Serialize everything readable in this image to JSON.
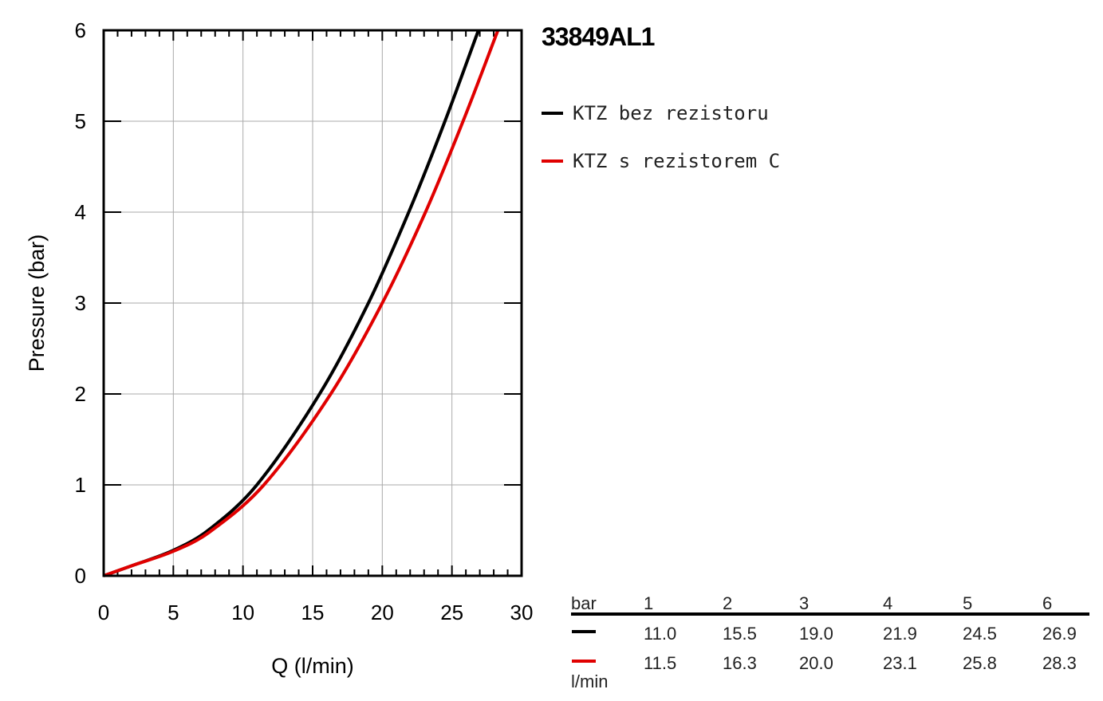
{
  "chart_data": {
    "type": "line",
    "title": "33849AL1",
    "xlabel": "Q (l/min)",
    "ylabel": "Pressure (bar)",
    "xlim": [
      0,
      30
    ],
    "ylim": [
      0,
      6
    ],
    "x_ticks": [
      0,
      5,
      10,
      15,
      20,
      25,
      30
    ],
    "y_ticks": [
      0,
      1,
      2,
      3,
      4,
      5,
      6
    ],
    "grid": true,
    "legend_position": "top-right",
    "series": [
      {
        "name": "KTZ bez rezistoru",
        "color": "#000000",
        "x": [
          0,
          2,
          5,
          7.5,
          11.0,
          15.5,
          19.0,
          21.9,
          24.5,
          26.9
        ],
        "y": [
          0,
          0.11,
          0.28,
          0.5,
          1,
          2,
          3,
          4,
          5,
          6
        ]
      },
      {
        "name": "KTZ s rezistorem C",
        "color": "#e00000",
        "x": [
          0,
          2,
          5,
          7.5,
          11.5,
          16.3,
          20.0,
          23.1,
          25.8,
          28.3
        ],
        "y": [
          0,
          0.11,
          0.27,
          0.47,
          1,
          2,
          3,
          4,
          5,
          6
        ]
      }
    ]
  },
  "table": {
    "header_unit": "bar",
    "columns": [
      "1",
      "2",
      "3",
      "4",
      "5",
      "6"
    ],
    "rows": [
      {
        "color": "#000000",
        "values": [
          "11.0",
          "15.5",
          "19.0",
          "21.9",
          "24.5",
          "26.9"
        ]
      },
      {
        "color": "#e00000",
        "values": [
          "11.5",
          "16.3",
          "20.0",
          "23.1",
          "25.8",
          "28.3"
        ]
      }
    ],
    "row_unit": "l/min"
  }
}
